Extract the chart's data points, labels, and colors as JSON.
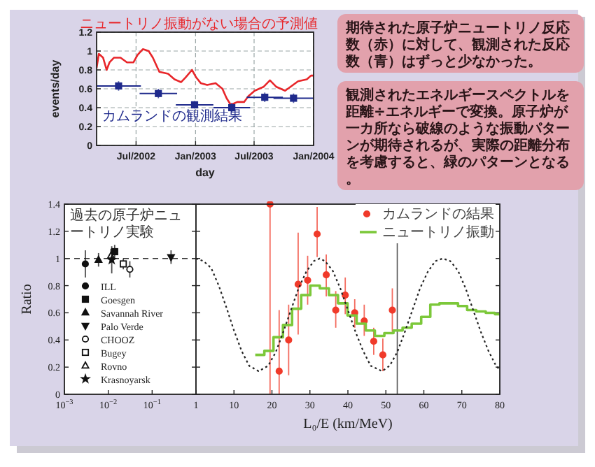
{
  "chart_data": [
    {
      "type": "line",
      "xlabel": "day",
      "ylabel": "events/day",
      "xlim": [
        "2002-03-01",
        "2004-01-01"
      ],
      "xticks": [
        {
          "value": "2002-07-01",
          "label": "Jul/2002"
        },
        {
          "value": "2003-01-01",
          "label": "Jan/2003"
        },
        {
          "value": "2003-07-01",
          "label": "Jul/2003"
        },
        {
          "value": "2004-01-01",
          "label": "Jan/2004"
        }
      ],
      "ylim": [
        0,
        1.2
      ],
      "yticks": [
        0,
        0.2,
        0.4,
        0.6,
        0.8,
        1,
        1.2
      ],
      "grid": true,
      "series": [
        {
          "name": "ニュートリノ振動がない場合の予測値",
          "color": "#e8262a",
          "x": [
            "2002-03-01",
            "2002-03-08",
            "2002-03-21",
            "2002-04-01",
            "2002-04-10",
            "2002-04-24",
            "2002-05-14",
            "2002-06-03",
            "2002-06-23",
            "2002-07-06",
            "2002-07-22",
            "2002-08-09",
            "2002-08-22",
            "2002-09-11",
            "2002-10-08",
            "2002-10-28",
            "2002-11-17",
            "2002-12-01",
            "2002-12-21",
            "2003-01-03",
            "2003-01-17",
            "2003-02-06",
            "2003-03-04",
            "2003-03-25",
            "2003-04-07",
            "2003-04-20",
            "2003-05-10",
            "2003-05-31",
            "2003-06-13",
            "2003-07-03",
            "2003-07-30",
            "2003-08-19",
            "2003-09-08",
            "2003-10-05",
            "2003-10-25",
            "2003-11-14",
            "2003-12-11",
            "2003-12-24",
            "2004-01-01"
          ],
          "values": [
            0.82,
            0.97,
            0.93,
            0.8,
            0.88,
            0.93,
            0.93,
            0.88,
            0.88,
            0.96,
            1.02,
            1.0,
            0.93,
            0.78,
            0.76,
            0.7,
            0.67,
            0.72,
            0.8,
            0.72,
            0.66,
            0.64,
            0.66,
            0.6,
            0.5,
            0.43,
            0.46,
            0.46,
            0.52,
            0.58,
            0.62,
            0.69,
            0.62,
            0.58,
            0.63,
            0.68,
            0.7,
            0.74,
            0.74
          ]
        },
        {
          "name": "カムランドの観測結果",
          "type": "scatter",
          "marker": "square",
          "color": "#1f2a8c",
          "x": [
            "2002-05-08",
            "2002-09-08",
            "2002-12-29",
            "2003-04-23",
            "2003-08-03",
            "2003-10-31"
          ],
          "values": [
            0.63,
            0.55,
            0.43,
            0.4,
            0.51,
            0.5
          ],
          "errors": [
            0.05,
            0.05,
            0.04,
            0.05,
            0.05,
            0.05
          ],
          "xerrors": [
            69,
            58,
            58,
            57,
            56,
            62
          ]
        }
      ],
      "annotations": [
        "期待された原子炉ニュートリノ反応数（赤）に対して、観測された反応数（青）はずっと少なかった。"
      ]
    },
    {
      "type": "scatter",
      "ylabel": "Ratio",
      "log": "x",
      "xlim": [
        0.001,
        1
      ],
      "xticks": [
        {
          "value": 0.001,
          "label": "10$^{−3}$"
        },
        {
          "value": 0.01,
          "label": "10$^{−2}$"
        },
        {
          "value": 0.1,
          "label": "10$^{−1}$"
        },
        1
      ],
      "ylim": [
        0,
        1.4
      ],
      "yticks": [
        0,
        0.2,
        0.4,
        0.6,
        0.8,
        1,
        1.2,
        1.4
      ],
      "legend": "bottom left",
      "ref_lines": [
        {
          "axis": "y",
          "value": 1,
          "line_style": "dashed",
          "color": "#333333"
        }
      ],
      "series": [
        {
          "name": "ILL",
          "marker": "circle",
          "color": "#111111",
          "x": [
            0.003
          ],
          "values": [
            0.96
          ],
          "errors": [
            0.1
          ]
        },
        {
          "name": "Goesgen",
          "marker": "square",
          "color": "#111111",
          "x": [
            0.014
          ],
          "values": [
            1.05
          ],
          "errors": [
            0.05
          ]
        },
        {
          "name": "Savannah River",
          "marker": "triangle",
          "color": "#111111",
          "x": [
            0.006
          ],
          "values": [
            0.99
          ],
          "errors": [
            0.05
          ]
        },
        {
          "name": "Palo Verde",
          "marker": "triangle-down",
          "color": "#111111",
          "x": [
            0.27
          ],
          "values": [
            1.01
          ],
          "errors": [
            0.05
          ]
        },
        {
          "name": "CHOOZ",
          "marker": "circle-open",
          "color": "#111111",
          "x": [
            0.031
          ],
          "values": [
            0.92
          ],
          "errors": [
            0.06
          ]
        },
        {
          "name": "Bugey",
          "marker": "square-open",
          "color": "#111111",
          "x": [
            0.022
          ],
          "values": [
            0.96
          ],
          "errors": [
            0.04
          ]
        },
        {
          "name": "Rovno",
          "marker": "triangle-open",
          "color": "#111111",
          "x": [
            0.0115
          ],
          "values": [
            1.02
          ],
          "errors": [
            0.05
          ]
        },
        {
          "name": "Krasnoyarsk",
          "marker": "star",
          "color": "#111111",
          "x": [
            0.012
          ],
          "values": [
            0.99
          ],
          "errors": [
            0.1
          ]
        }
      ],
      "annotations": [
        "過去の原子炉ニュートリノ実験"
      ]
    },
    {
      "type": "scatter",
      "xlabel": "L₀/E (km/MeV)",
      "xlim": [
        0,
        80
      ],
      "xticks": [
        {
          "value": 0,
          "label": null
        },
        10,
        20,
        30,
        40,
        50,
        60,
        70,
        80
      ],
      "ylim": [
        0,
        1.4
      ],
      "yticks": [
        0,
        0.2,
        0.4,
        0.6,
        0.8,
        1,
        1.2,
        1.4
      ],
      "tick_labels": "x",
      "legend": "top right",
      "ref_lines": [
        {
          "axis": "x",
          "value": 53,
          "color": "#555555"
        }
      ],
      "series": [
        {
          "name": "カムランドの結果",
          "marker": "circle",
          "color": "#f03a2a",
          "x": [
            19.5,
            21.9,
            24.4,
            26.9,
            29.4,
            31.9,
            34.3,
            36.8,
            39.3,
            41.8,
            44.3,
            46.8,
            49.2,
            51.7
          ],
          "values": [
            1.4,
            0.17,
            0.4,
            0.81,
            0.84,
            1.18,
            0.88,
            0.62,
            0.73,
            0.6,
            0.54,
            0.39,
            0.29,
            0.62
          ],
          "errors": [
            [
              0,
              1.4
            ],
            [
              0,
              0.62
            ],
            [
              0.14,
              0.66
            ],
            [
              0.44,
              1.19
            ],
            [
              0.66,
              1.02
            ],
            [
              1.01,
              1.38
            ],
            [
              0.72,
              1.03
            ],
            [
              0.49,
              0.76
            ],
            [
              0.59,
              0.86
            ],
            [
              0.49,
              0.7
            ],
            [
              0.43,
              0.66
            ],
            [
              0.29,
              0.49
            ],
            [
              0.17,
              0.41
            ],
            [
              0.46,
              0.78
            ]
          ]
        },
        {
          "name": "ニュートリノ振動",
          "type": "step",
          "color": "#7cc83a",
          "x": [
            15.6,
            18.0,
            20.4,
            22.9,
            25.3,
            27.7,
            30.1,
            32.6,
            35.0,
            37.4,
            39.9,
            42.3,
            44.7,
            47.1,
            49.6,
            52.0,
            54.4,
            56.8,
            59.3,
            61.7,
            64.1,
            66.6,
            69.0,
            71.4,
            73.8,
            76.3,
            78.7,
            80
          ],
          "values": [
            0.29,
            0.32,
            0.42,
            0.51,
            0.63,
            0.73,
            0.8,
            0.78,
            0.73,
            0.67,
            0.58,
            0.52,
            0.47,
            0.43,
            0.45,
            0.47,
            0.49,
            0.52,
            0.57,
            0.66,
            0.67,
            0.67,
            0.65,
            0.62,
            0.61,
            0.6,
            0.59,
            0.59
          ]
        },
        {
          "type": "line",
          "line_style": "dotted",
          "color": "#222222",
          "x": [
            0,
            2,
            4,
            6,
            8,
            10,
            12,
            14,
            16.5,
            19,
            21,
            23,
            25,
            27,
            29,
            31,
            32.6,
            34,
            36,
            38,
            40,
            42,
            44,
            46,
            49,
            51,
            53,
            55,
            57,
            59,
            61,
            63,
            65,
            67,
            69,
            71,
            73,
            75,
            77,
            79,
            80
          ],
          "values": [
            1.0,
            0.98,
            0.93,
            0.8,
            0.64,
            0.47,
            0.32,
            0.21,
            0.17,
            0.21,
            0.31,
            0.46,
            0.62,
            0.78,
            0.9,
            0.98,
            1.0,
            0.98,
            0.91,
            0.78,
            0.62,
            0.46,
            0.32,
            0.21,
            0.17,
            0.21,
            0.31,
            0.46,
            0.62,
            0.78,
            0.9,
            0.98,
            1.0,
            0.98,
            0.91,
            0.78,
            0.62,
            0.46,
            0.32,
            0.21,
            0.18
          ]
        }
      ],
      "annotations": [
        "観測されたエネルギースペクトルを距離÷エネルギーで変換。原子炉が一カ所なら破線のような振動パターンが期待されるが、実際の距離分布を考慮すると、緑のパターンとなる。"
      ]
    }
  ]
}
